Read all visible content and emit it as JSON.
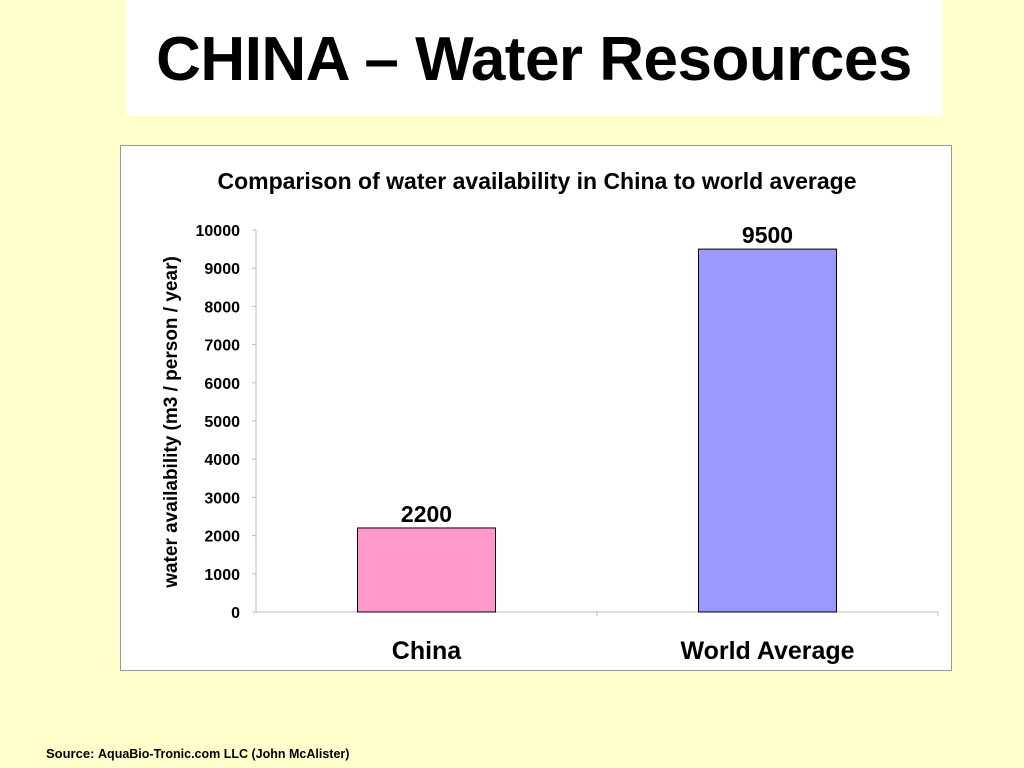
{
  "slide": {
    "title": "CHINA – Water Resources",
    "source_label": "Source:",
    "source_text": "AquaBio-Tronic.com LLC (John McAlister)"
  },
  "colors": {
    "background": "#ffffcc",
    "china_bar": "#ff99cc",
    "world_bar": "#9999ff"
  },
  "chart_data": {
    "type": "bar",
    "title": "Comparison of water availability in China to world average",
    "ylabel": "water availability (m3 / person / year)",
    "xlabel": "",
    "categories": [
      "China",
      "World Average"
    ],
    "values": [
      2200,
      9500
    ],
    "data_labels": [
      "2200",
      "9500"
    ],
    "bar_colors": [
      "#ff99cc",
      "#9999ff"
    ],
    "ylim": [
      0,
      10000
    ],
    "yticks": [
      0,
      1000,
      2000,
      3000,
      4000,
      5000,
      6000,
      7000,
      8000,
      9000,
      10000
    ],
    "grid": false,
    "legend": "none"
  }
}
